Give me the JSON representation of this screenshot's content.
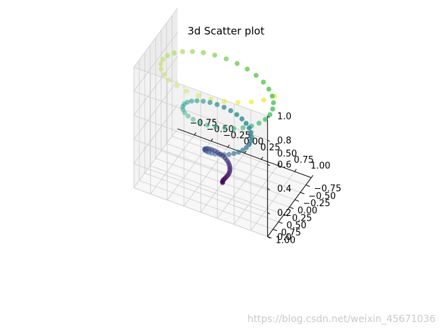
{
  "chart_data": {
    "type": "scatter",
    "projection": "3d",
    "title": "3d Scatter plot",
    "xlabel": "",
    "ylabel": "",
    "zlabel": "",
    "x_ticks": [
      "−0.75",
      "−0.50",
      "−0.25",
      "0.00",
      "0.25",
      "0.50",
      "0.75",
      "1.00"
    ],
    "y_ticks": [
      "−0.75",
      "−0.50",
      "−0.25",
      "0.00",
      "0.25",
      "0.50",
      "0.75",
      "1.00"
    ],
    "z_ticks": [
      "0.0",
      "0.2",
      "0.4",
      "0.6",
      "0.8",
      "1.0"
    ],
    "xlim": [
      -1,
      1
    ],
    "ylim": [
      -1,
      1
    ],
    "zlim": [
      0,
      1
    ],
    "grid": true,
    "colormap": "viridis",
    "color_by": "z",
    "point_color": "#440154",
    "pane_color": "#f2f2f2",
    "grid_color": "#cccccc",
    "series": [
      {
        "equation": "z = t, x = t·sin(20t), y = t·cos(20t)",
        "t_range": [
          0,
          1
        ],
        "n_points": 100
      }
    ]
  },
  "watermark": "https://blog.csdn.net/weixin_45671036"
}
